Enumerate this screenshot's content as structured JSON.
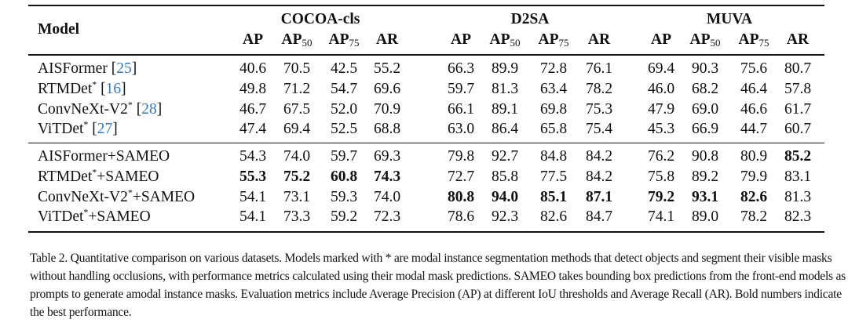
{
  "table": {
    "model_header": "Model",
    "groups": [
      "COCOA-cls",
      "D2SA",
      "MUVA"
    ],
    "metrics": [
      {
        "base": "AP",
        "sub": ""
      },
      {
        "base": "AP",
        "sub": "50"
      },
      {
        "base": "AP",
        "sub": "75"
      },
      {
        "base": "AR",
        "sub": ""
      }
    ],
    "sections": [
      [
        {
          "name": "AISFormer",
          "star": false,
          "suffix": "",
          "ref": "25",
          "values": [
            "40.6",
            "70.5",
            "42.5",
            "55.2",
            "66.3",
            "89.9",
            "72.8",
            "76.1",
            "69.4",
            "90.3",
            "75.6",
            "80.7"
          ],
          "bold": []
        },
        {
          "name": "RTMDet",
          "star": true,
          "suffix": "",
          "ref": "16",
          "values": [
            "49.8",
            "71.2",
            "54.7",
            "69.6",
            "59.7",
            "81.3",
            "63.4",
            "78.2",
            "46.0",
            "68.2",
            "46.4",
            "57.8"
          ],
          "bold": []
        },
        {
          "name": "ConvNeXt-V2",
          "star": true,
          "suffix": "",
          "ref": "28",
          "values": [
            "46.7",
            "67.5",
            "52.0",
            "70.9",
            "66.1",
            "89.1",
            "69.8",
            "75.3",
            "47.9",
            "69.0",
            "46.6",
            "61.7"
          ],
          "bold": []
        },
        {
          "name": "ViTDet",
          "star": true,
          "suffix": "",
          "ref": "27",
          "values": [
            "47.4",
            "69.4",
            "52.5",
            "68.8",
            "63.0",
            "86.4",
            "65.8",
            "75.4",
            "45.3",
            "66.9",
            "44.7",
            "60.7"
          ],
          "bold": []
        }
      ],
      [
        {
          "name": "AISFormer",
          "star": false,
          "suffix": "+SAMEO",
          "ref": "",
          "values": [
            "54.3",
            "74.0",
            "59.7",
            "69.3",
            "79.8",
            "92.7",
            "84.8",
            "84.2",
            "76.2",
            "90.8",
            "80.9",
            "85.2"
          ],
          "bold": [
            11
          ]
        },
        {
          "name": "RTMDet",
          "star": true,
          "suffix": "+SAMEO",
          "ref": "",
          "values": [
            "55.3",
            "75.2",
            "60.8",
            "74.3",
            "72.7",
            "85.8",
            "77.5",
            "84.2",
            "75.8",
            "89.2",
            "79.9",
            "83.1"
          ],
          "bold": [
            0,
            1,
            2,
            3
          ]
        },
        {
          "name": "ConvNeXt-V2",
          "star": true,
          "suffix": "+SAMEO",
          "ref": "",
          "values": [
            "54.1",
            "73.1",
            "59.3",
            "74.0",
            "80.8",
            "94.0",
            "85.1",
            "87.1",
            "79.2",
            "93.1",
            "82.6",
            "81.3"
          ],
          "bold": [
            4,
            5,
            6,
            7,
            8,
            9,
            10
          ]
        },
        {
          "name": "ViTDet",
          "star": true,
          "suffix": "+SAMEO",
          "ref": "",
          "values": [
            "54.1",
            "73.3",
            "59.2",
            "72.3",
            "78.6",
            "92.3",
            "82.6",
            "84.7",
            "74.1",
            "89.0",
            "78.2",
            "82.3"
          ],
          "bold": []
        }
      ]
    ]
  },
  "caption": "Table 2. Quantitative comparison on various datasets. Models marked with * are modal instance segmentation methods that detect objects and segment their visible masks without handling occlusions, with performance metrics calculated using their modal mask predictions. SAMEO takes bounding box predictions from the front-end models as prompts to generate amodal instance masks. Evaluation metrics include Average Precision (AP) at different IoU thresholds and Average Recall (AR). Bold numbers indicate the best performance.",
  "colors": {
    "reference_link": "#3a78b5",
    "text": "#111111"
  }
}
